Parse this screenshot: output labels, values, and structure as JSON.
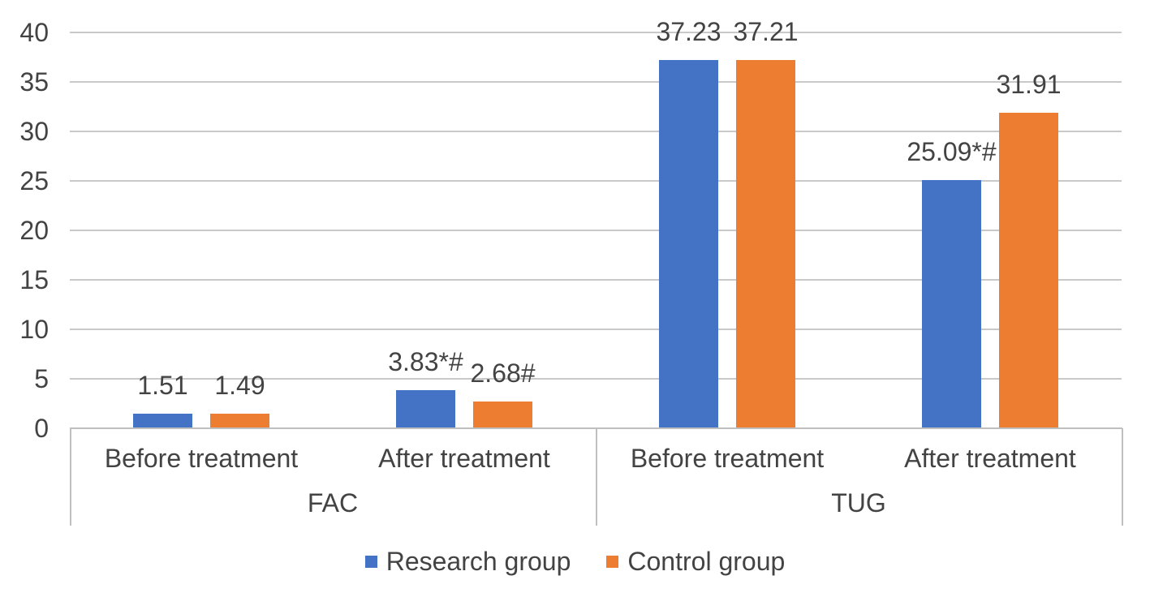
{
  "chart_data": {
    "type": "bar",
    "title": "",
    "groups": [
      {
        "label": "FAC",
        "categories": [
          "Before treatment",
          "After treatment"
        ]
      },
      {
        "label": "TUG",
        "categories": [
          "Before treatment",
          "After treatment"
        ]
      }
    ],
    "series": [
      {
        "name": "Research group",
        "color": "#4472C4",
        "values": [
          1.51,
          3.83,
          37.23,
          25.09
        ],
        "value_labels": [
          "1.51",
          "3.83*#",
          "37.23",
          "25.09*#"
        ]
      },
      {
        "name": "Control group",
        "color": "#ED7D31",
        "values": [
          1.49,
          2.68,
          37.21,
          31.91
        ],
        "value_labels": [
          "1.49",
          "2.68#",
          "37.21",
          "31.91"
        ]
      }
    ],
    "y_axis": {
      "min": 0,
      "max": 40,
      "tick_step": 5,
      "ticks": [
        0,
        5,
        10,
        15,
        20,
        25,
        30,
        35,
        40
      ]
    },
    "grid": true,
    "legend_position": "bottom",
    "colors": {
      "gridline": "#C9C9C9",
      "axis_line": "#BFBFBF",
      "text": "#434343",
      "background": "#FFFFFF"
    }
  }
}
